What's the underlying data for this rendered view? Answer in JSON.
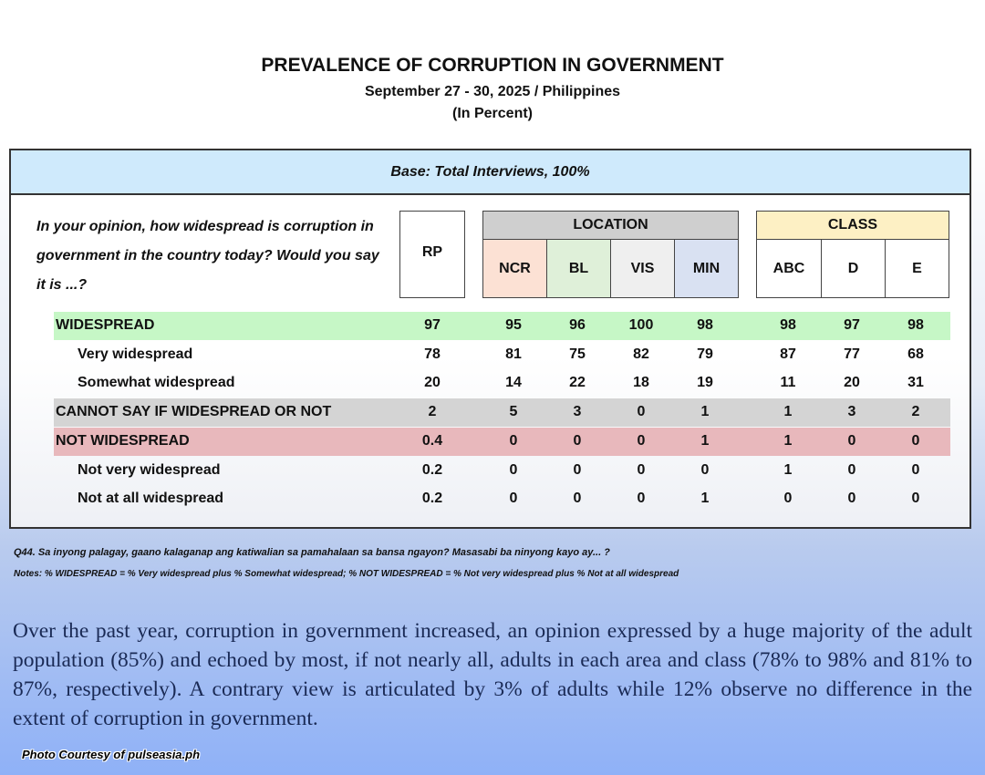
{
  "title": "PREVALENCE OF CORRUPTION IN GOVERNMENT",
  "subtitle": "September 27 - 30, 2025 / Philippines",
  "unit": "(In Percent)",
  "base": "Base: Total Interviews, 100%",
  "question": "In your opinion, how widespread is corruption in government in the country today? Would you say it is ...?",
  "headers": {
    "rp": "RP",
    "location": "LOCATION",
    "class": "CLASS",
    "location_cols": [
      "NCR",
      "BL",
      "VIS",
      "MIN"
    ],
    "class_cols": [
      "ABC",
      "D",
      "E"
    ]
  },
  "colors": {
    "ncr": "#fce1d4",
    "bl": "#dff0d9",
    "vis": "#efefef",
    "min": "#d9e1f2",
    "class": "#fdf0c4",
    "location": "#cfcfcf",
    "widespread": "#c6f7c6",
    "cannot_say": "#d4d4d4",
    "not_widespread": "#e8b8bc"
  },
  "rows": [
    {
      "label": "WIDESPREAD",
      "values": [
        "97",
        "95",
        "96",
        "100",
        "98",
        "98",
        "97",
        "98"
      ]
    },
    {
      "label": "Very widespread",
      "values": [
        "78",
        "81",
        "75",
        "82",
        "79",
        "87",
        "77",
        "68"
      ]
    },
    {
      "label": "Somewhat widespread",
      "values": [
        "20",
        "14",
        "22",
        "18",
        "19",
        "11",
        "20",
        "31"
      ]
    },
    {
      "label": "CANNOT SAY IF WIDESPREAD OR NOT",
      "values": [
        "2",
        "5",
        "3",
        "0",
        "1",
        "1",
        "3",
        "2"
      ]
    },
    {
      "label": "NOT WIDESPREAD",
      "values": [
        "0.4",
        "0",
        "0",
        "0",
        "1",
        "1",
        "0",
        "0"
      ]
    },
    {
      "label": "Not very widespread",
      "values": [
        "0.2",
        "0",
        "0",
        "0",
        "0",
        "1",
        "0",
        "0"
      ]
    },
    {
      "label": "Not at all widespread",
      "values": [
        "0.2",
        "0",
        "0",
        "0",
        "1",
        "0",
        "0",
        "0"
      ]
    }
  ],
  "q44": "Q44. Sa inyong palagay, gaano kalaganap ang katiwalian sa pamahalaan sa bansa ngayon? Masasabi ba ninyong kayo ay... ?",
  "notes": "Notes: % WIDESPREAD = % Very widespread plus % Somewhat widespread; % NOT WIDESPREAD = % Not very widespread plus % Not at all widespread",
  "paragraph": "Over the past year, corruption in government increased, an opinion expressed by a huge majority of the adult population (85%) and echoed by most, if not nearly all, adults in each area and class (78% to 98% and 81% to 87%, respectively). A contrary view is articulated by 3% of adults while 12% observe no difference in the extent of corruption in government.",
  "credit": "Photo Courtesy of pulseasia.ph"
}
